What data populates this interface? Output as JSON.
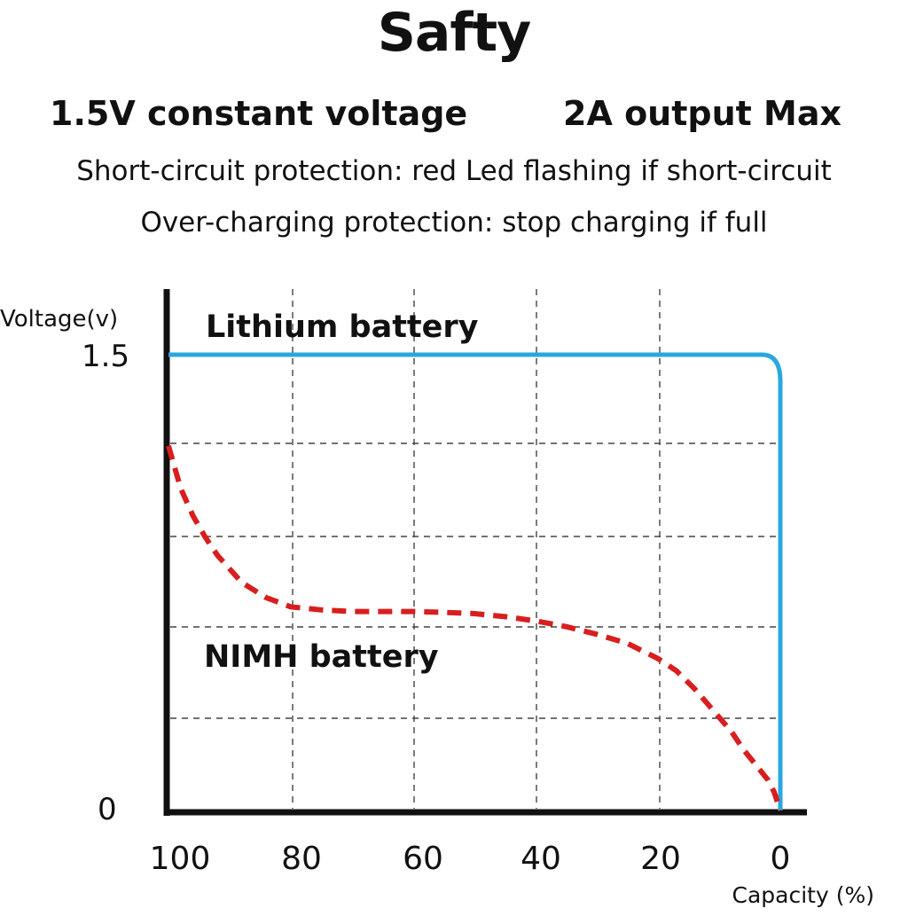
{
  "header": {
    "title": "Safty",
    "subtitle_left": "1.5V constant voltage",
    "subtitle_right": "2A output Max",
    "line1": "Short-circuit protection: red Led flashing if short-circuit",
    "line2": "Over-charging protection: stop charging if full"
  },
  "chart_data": {
    "type": "line",
    "ylabel": "Voltage(v)",
    "xlabel": "Capacity (%)",
    "x_ticks": [
      "100",
      "80",
      "60",
      "40",
      "20",
      "0"
    ],
    "y_ticks": [
      "1.5",
      "0"
    ],
    "xlim": [
      100,
      0
    ],
    "ylim": [
      0,
      1.5
    ],
    "grid": true,
    "series": [
      {
        "name": "Lithium battery",
        "color": "#29a8e0",
        "style": "solid",
        "x": [
          100,
          80,
          60,
          40,
          20,
          5,
          1,
          0.5,
          0
        ],
        "y": [
          1.5,
          1.5,
          1.5,
          1.5,
          1.5,
          1.5,
          1.45,
          1.35,
          0
        ]
      },
      {
        "name": "NIMH battery",
        "color": "#d81e1e",
        "style": "dashed",
        "x": [
          100,
          98,
          96,
          94,
          92,
          88,
          84,
          80,
          75,
          70,
          65,
          60,
          55,
          50,
          45,
          40,
          35,
          30,
          25,
          20,
          17,
          14,
          11,
          8,
          6,
          4,
          2,
          1,
          0
        ],
        "y": [
          1.2,
          1.06,
          0.97,
          0.9,
          0.84,
          0.75,
          0.7,
          0.67,
          0.66,
          0.655,
          0.655,
          0.655,
          0.652,
          0.648,
          0.638,
          0.624,
          0.605,
          0.58,
          0.55,
          0.5,
          0.46,
          0.4,
          0.33,
          0.26,
          0.2,
          0.15,
          0.1,
          0.06,
          0.0
        ]
      }
    ]
  }
}
